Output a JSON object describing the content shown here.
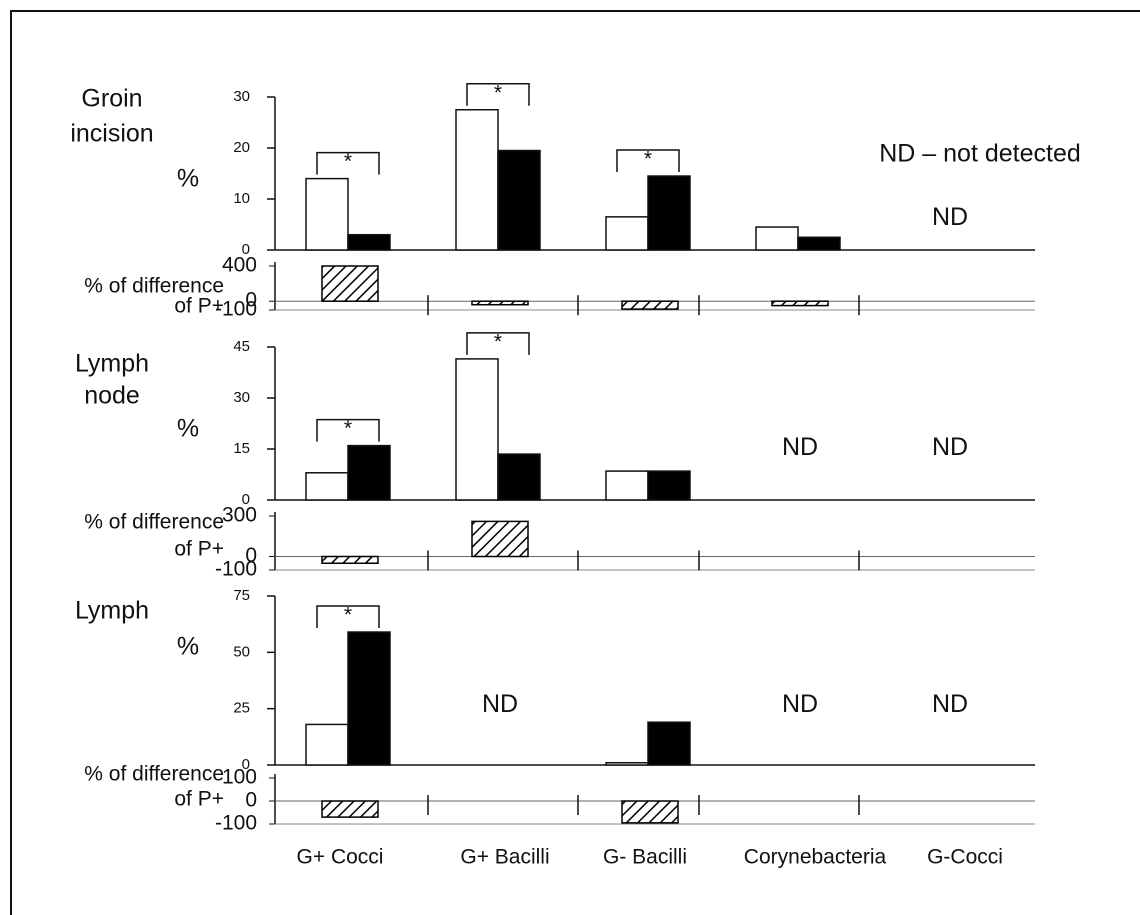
{
  "chart_data": [
    {
      "type": "bar",
      "title": [
        "Groin",
        "incision"
      ],
      "ylabel": "%",
      "ylim": [
        0,
        30
      ],
      "yticks": [
        0,
        10,
        20,
        30
      ],
      "series": [
        {
          "color": "#ffffff",
          "values": [
            14,
            27.5,
            6.5,
            4.5,
            null
          ]
        },
        {
          "color": "#000000",
          "values": [
            3,
            19.5,
            14.5,
            2.5,
            null
          ]
        }
      ],
      "significance": [
        {
          "text": "*",
          "x": "G+ Cocci"
        },
        {
          "text": "*",
          "x": "G+ Bacilli"
        },
        {
          "text": "*",
          "x": "G- Bacilli"
        }
      ],
      "annotations": [
        {
          "text": "ND",
          "x": "G-Cocci"
        }
      ],
      "note": "ND – not detected"
    },
    {
      "type": "diff",
      "ylabel": [
        "% of difference",
        "of P+"
      ],
      "ylim": [
        -100,
        400
      ],
      "yticks": [
        -100,
        0,
        400
      ],
      "values": [
        400,
        -40,
        -90,
        -50,
        null
      ],
      "color": "#000000",
      "hatch": true
    },
    {
      "type": "bar",
      "title": [
        "Lymph",
        "node"
      ],
      "ylabel": "%",
      "ylim": [
        0,
        45
      ],
      "yticks": [
        0,
        15,
        30,
        45
      ],
      "series": [
        {
          "color": "#ffffff",
          "values": [
            8,
            41.5,
            8.5,
            null,
            null
          ]
        },
        {
          "color": "#000000",
          "values": [
            16,
            13.5,
            8.5,
            null,
            null
          ]
        }
      ],
      "significance": [
        {
          "text": "*",
          "x": "G+ Cocci"
        },
        {
          "text": "*",
          "x": "G+ Bacilli"
        }
      ],
      "annotations": [
        {
          "text": "ND",
          "x": "Corynebacteria"
        },
        {
          "text": "ND",
          "x": "G-Cocci"
        }
      ]
    },
    {
      "type": "diff",
      "ylabel": [
        "% of difference",
        "of P+"
      ],
      "ylim": [
        -100,
        300
      ],
      "yticks": [
        -100,
        0,
        300
      ],
      "values": [
        -50,
        260,
        0,
        null,
        null
      ],
      "color": "#000000",
      "hatch": true
    },
    {
      "type": "bar",
      "title": [
        "Lymph"
      ],
      "ylabel": "%",
      "ylim": [
        0,
        75
      ],
      "yticks": [
        0,
        25,
        50,
        75
      ],
      "series": [
        {
          "color": "#ffffff",
          "values": [
            18,
            null,
            1,
            null,
            null
          ]
        },
        {
          "color": "#000000",
          "values": [
            59,
            null,
            19,
            null,
            null
          ]
        }
      ],
      "significance": [
        {
          "text": "*",
          "x": "G+ Cocci"
        }
      ],
      "annotations": [
        {
          "text": "ND",
          "x": "G+ Bacilli"
        },
        {
          "text": "ND",
          "x": "Corynebacteria"
        },
        {
          "text": "ND",
          "x": "G-Cocci"
        }
      ]
    },
    {
      "type": "diff",
      "ylabel": [
        "% of difference",
        "of P+"
      ],
      "ylim": [
        -100,
        100
      ],
      "yticks": [
        -100,
        0,
        100
      ],
      "values": [
        -70,
        null,
        -95,
        null,
        null
      ],
      "color": "#000000",
      "hatch": true,
      "categories": [
        "G+ Cocci",
        "G+ Bacilli",
        "G- Bacilli",
        "Corynebacteria",
        "G-Cocci"
      ]
    }
  ]
}
